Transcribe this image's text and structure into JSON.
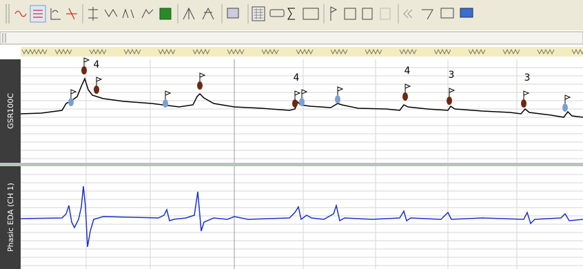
{
  "channels": [
    {
      "label": "GSR100C",
      "events": [
        "4",
        "4",
        "4",
        "3",
        "3"
      ]
    },
    {
      "label": "Phasic EDA (CH 1)"
    }
  ]
}
